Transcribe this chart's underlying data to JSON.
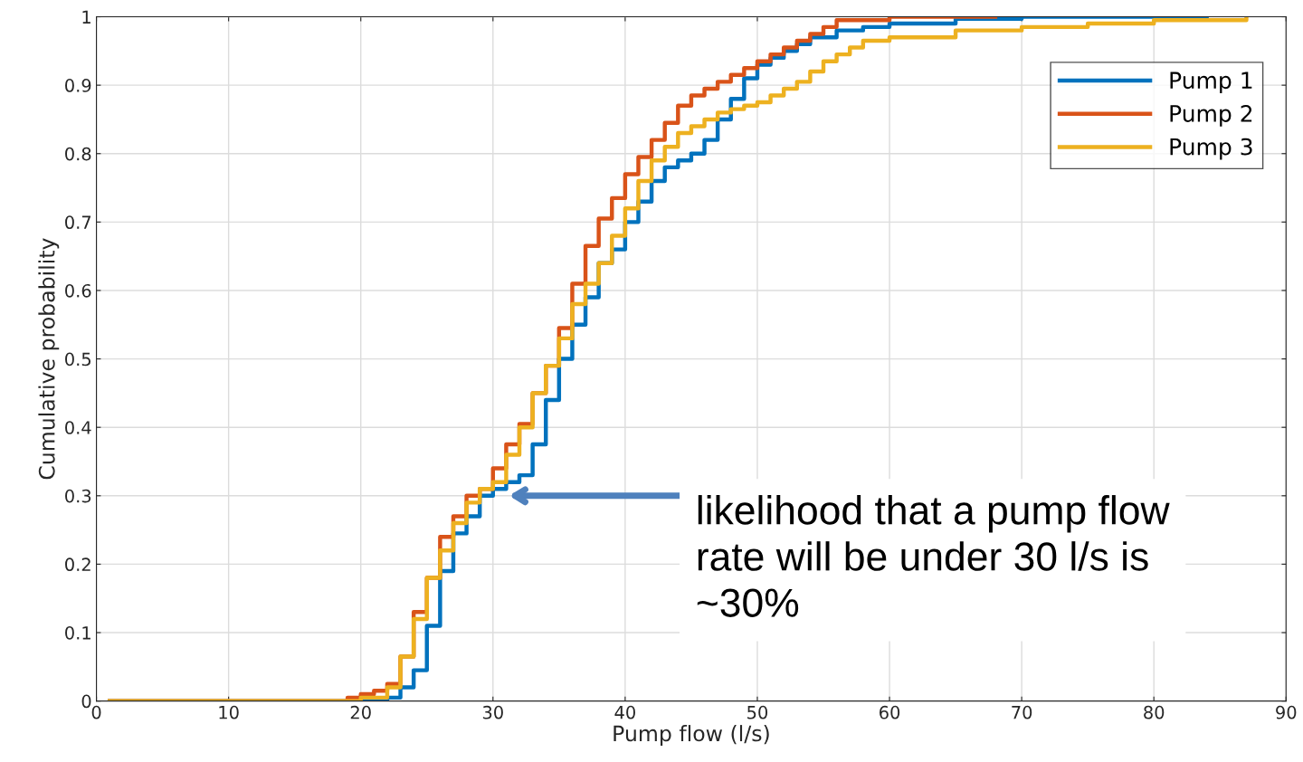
{
  "chart_data": {
    "type": "step",
    "xlabel": "Pump flow (l/s)",
    "ylabel": "Cumulative probability",
    "xlim": [
      0,
      90
    ],
    "xticks": [
      0,
      10,
      20,
      30,
      40,
      50,
      60,
      70,
      80,
      90
    ],
    "ylim": [
      0,
      1
    ],
    "yticks": [
      0,
      0.1,
      0.2,
      0.3,
      0.4,
      0.5,
      0.6,
      0.7,
      0.8,
      0.9,
      1
    ],
    "grid": true,
    "legend": "top right",
    "annotations": [
      "likelihood that a pump flow rate will be under 30 l/s is ~30%"
    ],
    "series": [
      {
        "name": "Pump 1",
        "color": "#0072bd",
        "x": [
          1,
          22,
          23,
          24,
          25,
          26,
          27,
          28,
          29,
          30,
          31,
          32,
          33,
          34,
          35,
          36,
          37,
          38,
          39,
          40,
          41,
          42,
          43,
          44,
          45,
          46,
          47,
          48,
          49,
          50,
          51,
          52,
          53,
          54,
          56,
          58,
          60,
          65,
          70,
          84
        ],
        "values": [
          0,
          0.005,
          0.02,
          0.045,
          0.11,
          0.19,
          0.245,
          0.27,
          0.3,
          0.31,
          0.32,
          0.33,
          0.375,
          0.44,
          0.5,
          0.55,
          0.59,
          0.64,
          0.66,
          0.7,
          0.73,
          0.76,
          0.78,
          0.79,
          0.8,
          0.82,
          0.85,
          0.88,
          0.91,
          0.93,
          0.94,
          0.95,
          0.96,
          0.97,
          0.98,
          0.985,
          0.99,
          0.997,
          1,
          1
        ]
      },
      {
        "name": "Pump 2",
        "color": "#d95319",
        "x": [
          1,
          19,
          20,
          21,
          22,
          23,
          24,
          25,
          26,
          27,
          28,
          29,
          30,
          31,
          32,
          33,
          34,
          35,
          36,
          37,
          38,
          39,
          40,
          41,
          42,
          43,
          44,
          45,
          46,
          47,
          48,
          49,
          50,
          51,
          52,
          53,
          54,
          55,
          56,
          60,
          68
        ],
        "values": [
          0,
          0.005,
          0.01,
          0.015,
          0.025,
          0.065,
          0.13,
          0.18,
          0.24,
          0.27,
          0.3,
          0.31,
          0.34,
          0.375,
          0.405,
          0.45,
          0.49,
          0.545,
          0.61,
          0.665,
          0.705,
          0.735,
          0.77,
          0.795,
          0.82,
          0.845,
          0.87,
          0.885,
          0.895,
          0.905,
          0.915,
          0.925,
          0.935,
          0.945,
          0.955,
          0.965,
          0.975,
          0.985,
          0.995,
          1,
          1
        ]
      },
      {
        "name": "Pump 3",
        "color": "#edb120",
        "x": [
          1,
          20,
          22,
          23,
          24,
          25,
          26,
          27,
          28,
          29,
          30,
          31,
          32,
          33,
          34,
          35,
          36,
          37,
          38,
          39,
          40,
          41,
          42,
          43,
          44,
          45,
          46,
          47,
          48,
          49,
          50,
          51,
          52,
          53,
          54,
          55,
          56,
          57,
          58,
          60,
          65,
          70,
          75,
          80,
          87
        ],
        "values": [
          0,
          0.005,
          0.02,
          0.065,
          0.12,
          0.18,
          0.22,
          0.26,
          0.29,
          0.31,
          0.32,
          0.36,
          0.4,
          0.45,
          0.49,
          0.53,
          0.58,
          0.61,
          0.64,
          0.68,
          0.72,
          0.76,
          0.79,
          0.81,
          0.83,
          0.84,
          0.85,
          0.86,
          0.865,
          0.87,
          0.875,
          0.885,
          0.895,
          0.905,
          0.92,
          0.935,
          0.945,
          0.955,
          0.965,
          0.97,
          0.98,
          0.985,
          0.99,
          0.995,
          1
        ]
      }
    ]
  }
}
